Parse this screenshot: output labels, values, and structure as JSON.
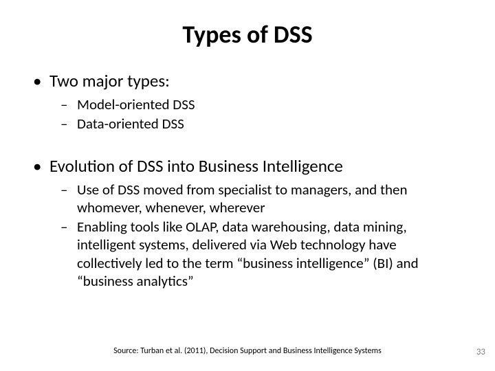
{
  "title": "Types of DSS",
  "bullets": {
    "item1": {
      "text": "Two major types:",
      "sub1": "Model-oriented DSS",
      "sub2": "Data-oriented DSS"
    },
    "item2": {
      "text": "Evolution of DSS into Business Intelligence",
      "sub1": "Use of DSS moved from specialist to managers,  and then whomever, whenever, wherever",
      "sub2": "Enabling tools like OLAP, data warehousing, data mining, intelligent systems, delivered via Web technology have collectively led to the term “business intelligence” (BI) and “business analytics”"
    }
  },
  "source": "Source:  Turban et al. (2011), Decision Support and Business Intelligence Systems",
  "page_number": "33",
  "colors": {
    "background": "#ffffff",
    "text": "#000000",
    "page_num": "#808080"
  },
  "fonts": {
    "title_size": 36,
    "level1_size": 25,
    "level2_size": 21,
    "source_size": 12
  }
}
